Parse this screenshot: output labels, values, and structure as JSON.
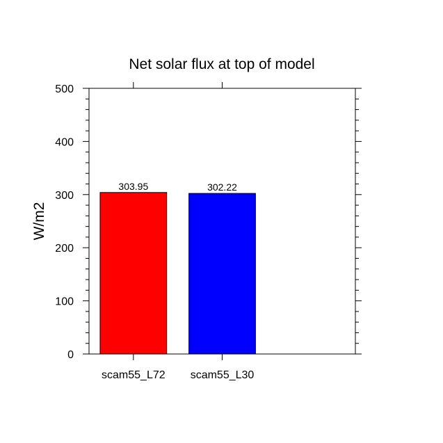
{
  "chart_data": {
    "type": "bar",
    "title": "Net solar flux at top of model",
    "xlabel": "",
    "ylabel": "W/m2",
    "ylim": [
      0,
      500
    ],
    "yticks": [
      0,
      100,
      200,
      300,
      400,
      500
    ],
    "yminor_step": 20,
    "x_slots": 3,
    "categories": [
      "scam55_L72",
      "scam55_L30"
    ],
    "values": [
      303.95,
      302.22
    ],
    "value_labels": [
      "303.95",
      "302.22"
    ],
    "colors": [
      "#ff0000",
      "#0000ff"
    ],
    "grid": false
  }
}
